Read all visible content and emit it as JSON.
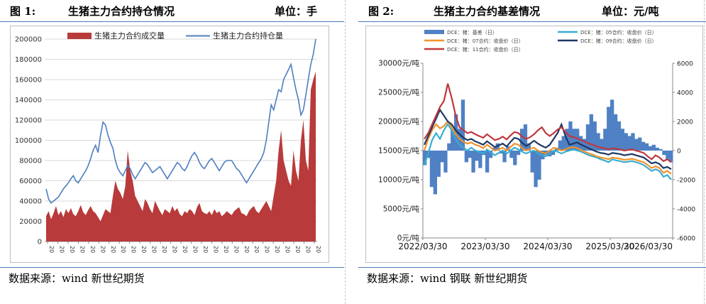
{
  "panel1": {
    "fig_label": "图 1:",
    "title": "生猪主力合约持仓情况",
    "unit": "单位：手",
    "source": "数据来源：wind 新世纪期货"
  },
  "panel2": {
    "fig_label": "图 2:",
    "title": "生猪主力合约基差情况",
    "unit": "单位：元/吨",
    "source": "数据来源：wind 钢联 新世纪期货"
  },
  "colors": {
    "volume": "#b83a3a",
    "oi": "#4e7ec0",
    "basis": "#4f81c4",
    "c05": "#38aed0",
    "c07": "#f2922b",
    "c09": "#1f3864",
    "c11": "#c0373f"
  },
  "chart_data": [
    {
      "type": "area",
      "ylim": [
        0,
        200000
      ],
      "yticks": [
        "0",
        "20000",
        "40000",
        "60000",
        "80000",
        "100000",
        "120000",
        "140000",
        "160000",
        "180000",
        "200000"
      ],
      "xticks": [
        "20",
        "20",
        "20",
        "20",
        "20",
        "20",
        "20",
        "20",
        "20",
        "20",
        "20",
        "20",
        "20",
        "20",
        "20",
        "20",
        "20",
        "20",
        "20",
        "20",
        "20",
        "20",
        "20",
        "20",
        "20",
        "20",
        "20"
      ],
      "grid": true,
      "legend_position": "top",
      "series": [
        {
          "name": "生猪主力合约成交量",
          "kind": "area",
          "values": [
            25000,
            30000,
            22000,
            28000,
            35000,
            26000,
            30000,
            24000,
            32000,
            28000,
            33000,
            27000,
            25000,
            30000,
            36000,
            29000,
            26000,
            31000,
            35000,
            30000,
            28000,
            24000,
            20000,
            26000,
            32000,
            30000,
            28000,
            45000,
            60000,
            52000,
            48000,
            42000,
            55000,
            90000,
            70000,
            60000,
            45000,
            40000,
            35000,
            30000,
            42000,
            38000,
            32000,
            28000,
            40000,
            35000,
            30000,
            26000,
            32000,
            30000,
            28000,
            35000,
            30000,
            33000,
            27000,
            25000,
            30000,
            28000,
            32000,
            30000,
            26000,
            34000,
            38000,
            30000,
            28000,
            27000,
            30000,
            26000,
            32000,
            28000,
            30000,
            25000,
            27000,
            30000,
            28000,
            26000,
            30000,
            32000,
            34000,
            28000,
            27000,
            25000,
            30000,
            33000,
            35000,
            30000,
            28000,
            32000,
            36000,
            40000,
            35000,
            30000,
            45000,
            60000,
            90000,
            110000,
            80000,
            70000,
            60000,
            55000,
            90000,
            70000,
            60000,
            100000,
            120000,
            80000,
            70000,
            150000,
            160000,
            168000
          ]
        },
        {
          "name": "生猪主力合约持仓量",
          "kind": "line",
          "values": [
            52000,
            42000,
            38000,
            40000,
            42000,
            44000,
            48000,
            52000,
            55000,
            58000,
            62000,
            65000,
            60000,
            58000,
            62000,
            66000,
            70000,
            75000,
            82000,
            90000,
            95000,
            88000,
            105000,
            118000,
            115000,
            105000,
            98000,
            92000,
            80000,
            72000,
            68000,
            65000,
            70000,
            75000,
            72000,
            66000,
            62000,
            66000,
            70000,
            74000,
            78000,
            76000,
            72000,
            68000,
            70000,
            72000,
            74000,
            70000,
            66000,
            62000,
            66000,
            70000,
            74000,
            78000,
            76000,
            72000,
            70000,
            74000,
            80000,
            85000,
            88000,
            84000,
            78000,
            74000,
            72000,
            76000,
            80000,
            82000,
            78000,
            74000,
            70000,
            74000,
            78000,
            80000,
            80000,
            80000,
            76000,
            72000,
            70000,
            66000,
            62000,
            58000,
            62000,
            66000,
            70000,
            74000,
            78000,
            82000,
            88000,
            100000,
            118000,
            135000,
            130000,
            140000,
            150000,
            148000,
            160000,
            165000,
            170000,
            175000,
            162000,
            150000,
            140000,
            125000,
            130000,
            145000,
            160000,
            175000,
            185000,
            200000
          ]
        }
      ]
    },
    {
      "type": "line",
      "xticks": [
        "2022/03/30",
        "2023/03/30",
        "2024/03/30",
        "2025/03/30",
        "2026/03/30"
      ],
      "yticks_left": [
        "0元/吨",
        "5000元/吨",
        "10000元/吨",
        "15000元/吨",
        "20000元/吨",
        "25000元/吨",
        "30000元/吨"
      ],
      "yticks_right": [
        "-6000",
        "-4000",
        "-2000",
        "0",
        "2000",
        "4000",
        "6000"
      ],
      "ylim_left": [
        0,
        30000
      ],
      "ylim_right": [
        -6000,
        6000
      ],
      "grid": false,
      "legend_position": "top",
      "series": [
        {
          "name": "DCE：猪：基差（日）",
          "axis": "right",
          "kind": "bar",
          "values": [
            -1000,
            -500,
            -2500,
            -3000,
            -1800,
            -800,
            -1500,
            500,
            1500,
            2500,
            1500,
            3500,
            -800,
            -500,
            -1500,
            -700,
            -1200,
            -300,
            -1500,
            -500,
            200,
            500,
            -200,
            -800,
            300,
            -500,
            -1000,
            -300,
            1500,
            1800,
            500,
            -1500,
            -2500,
            -2000,
            -600,
            -300,
            -400,
            -300,
            200,
            700,
            1000,
            1500,
            2000,
            1500,
            1500,
            1000,
            800,
            1800,
            2500,
            2000,
            1200,
            800,
            1500,
            3000,
            3500,
            2500,
            2000,
            1500,
            1200,
            1000,
            1200,
            800,
            900,
            600,
            500,
            300,
            400,
            200,
            100,
            -300,
            -600,
            -800
          ]
        },
        {
          "name": "DCE：猪：05合约：收盘价（日）",
          "axis": "left",
          "kind": "line",
          "values": [
            12500,
            14500,
            16800,
            18000,
            17000,
            18500,
            19500,
            18500,
            17000,
            16000,
            15500,
            15000,
            15500,
            15000,
            14800,
            14500,
            15200,
            14700,
            14200,
            14600,
            15000,
            14500,
            15000,
            15500,
            15200,
            14800,
            14500,
            14800,
            15000,
            14500,
            14200,
            14000,
            14500,
            15000,
            14800,
            14500,
            14800,
            15000,
            15200,
            15000,
            14800,
            14500,
            14200,
            14000,
            13800,
            13500,
            13300,
            13000,
            13500,
            13300,
            13200,
            13000,
            13100,
            13200,
            13000,
            12800,
            12500,
            12000,
            11500,
            11800,
            11500,
            10500,
            10800,
            10000
          ]
        },
        {
          "name": "DCE：猪：07合约：收盘价（日）",
          "axis": "left",
          "kind": "line",
          "values": [
            15000,
            17000,
            18500,
            19500,
            18800,
            19200,
            20000,
            19000,
            17800,
            17000,
            16500,
            16200,
            16400,
            16000,
            15800,
            15400,
            16000,
            15500,
            15000,
            15200,
            15500,
            15000,
            15600,
            16200,
            16000,
            15400,
            15000,
            15300,
            15500,
            15000,
            14700,
            14500,
            15000,
            15500,
            15300,
            15000,
            15200,
            15500,
            15600,
            15400,
            15100,
            14800,
            14500,
            14300,
            14000,
            13800,
            13700,
            13500,
            13800,
            13700,
            13600,
            13400,
            13500,
            13600,
            13400,
            13200,
            13000,
            12500,
            12000,
            12300,
            12000,
            11200,
            11500,
            11000
          ]
        },
        {
          "name": "DCE：猪：09合约：收盘价（日）",
          "axis": "left",
          "kind": "line",
          "values": [
            16000,
            17500,
            19000,
            20500,
            22000,
            21000,
            20000,
            19500,
            18500,
            17800,
            17200,
            16800,
            17000,
            16600,
            16300,
            16000,
            16600,
            16100,
            15600,
            15900,
            16200,
            15700,
            16500,
            17200,
            17000,
            16300,
            15800,
            16200,
            16700,
            16200,
            15800,
            15500,
            16000,
            17000,
            18000,
            19500,
            17500,
            16000,
            16200,
            16400,
            16000,
            15700,
            15400,
            15100,
            14800,
            14600,
            14500,
            14300,
            14600,
            14500,
            14400,
            14200,
            14300,
            14400,
            14200,
            14000,
            13800,
            13300,
            12800,
            13000,
            12700,
            12000,
            12200,
            11800
          ]
        },
        {
          "name": "DCE：猪：11合约：收盘价（日）",
          "axis": "left",
          "kind": "line",
          "values": [
            17000,
            18000,
            19500,
            21000,
            22500,
            23500,
            26500,
            24000,
            21000,
            19000,
            18500,
            18000,
            18200,
            17800,
            17500,
            17200,
            17800,
            17300,
            16800,
            17000,
            17400,
            16900,
            17600,
            18200,
            18000,
            17400,
            17000,
            17300,
            17800,
            18500,
            19000,
            18000,
            17500,
            18000,
            18600,
            19000,
            18200,
            17500,
            17300,
            17100,
            16800,
            16500,
            16200,
            16000,
            15700,
            15500,
            15400,
            15200,
            15400,
            15300,
            15200,
            15000,
            15100,
            15200,
            15000,
            14800,
            14600,
            14000,
            13500,
            14200,
            13800,
            13200,
            13500,
            13000
          ]
        }
      ]
    }
  ]
}
